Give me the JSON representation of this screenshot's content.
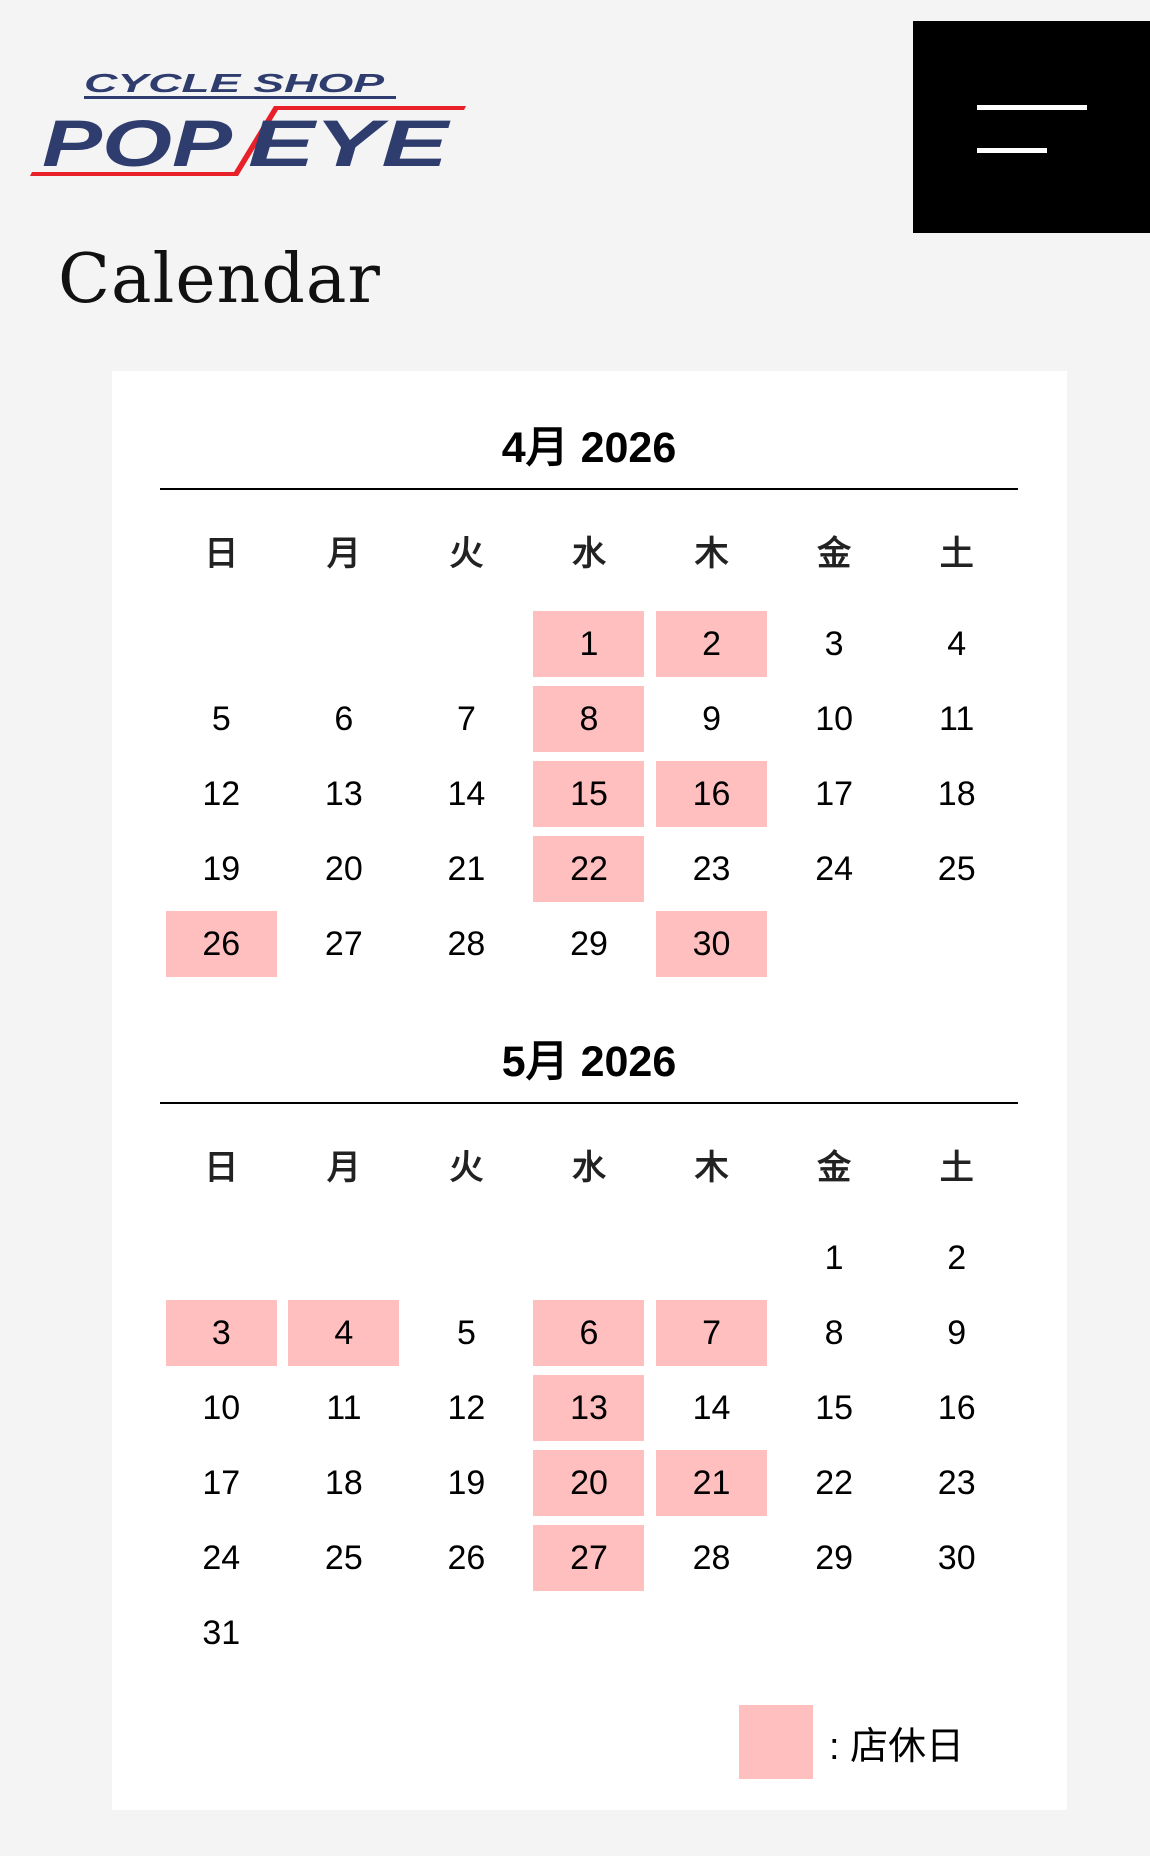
{
  "header": {
    "logo_text_top": "CYCLE SHOP",
    "logo_text_main": "POPEYE",
    "menu_icon": "hamburger-icon"
  },
  "page_title": "Calendar",
  "colors": {
    "closed": "#ffbfbf",
    "logo_blue": "#2e3d6e",
    "logo_red": "#e8202a"
  },
  "weekdays": [
    "日",
    "月",
    "火",
    "水",
    "木",
    "金",
    "土"
  ],
  "months": [
    {
      "title": "4月 2026",
      "start_weekday": 3,
      "days_in_month": 30,
      "closed_days": [
        1,
        2,
        8,
        15,
        16,
        22,
        26,
        30
      ]
    },
    {
      "title": "5月 2026",
      "start_weekday": 5,
      "days_in_month": 31,
      "closed_days": [
        3,
        4,
        6,
        7,
        13,
        20,
        21,
        27
      ]
    }
  ],
  "legend": {
    "label": ": 店休日"
  }
}
